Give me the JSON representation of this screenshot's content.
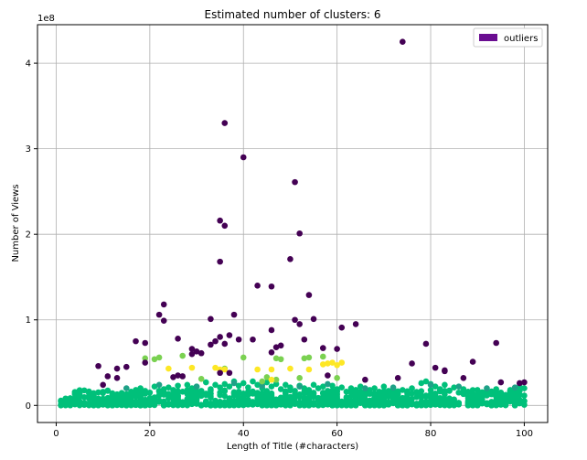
{
  "chart_data": {
    "type": "scatter",
    "title": "Estimated number of clusters: 6",
    "xlabel": "Length of Title (#characters)",
    "ylabel": "Number of Views",
    "y_multiplier_label": "1e8",
    "xlim": [
      -4,
      105
    ],
    "ylim": [
      -0.2,
      4.45
    ],
    "x_ticks": [
      0,
      20,
      40,
      60,
      80,
      100
    ],
    "y_ticks": [
      0,
      1,
      2,
      3,
      4
    ],
    "grid": true,
    "legend": {
      "placement": "top-right",
      "entries": [
        {
          "name": "outliers",
          "color": "#6a0d91"
        }
      ]
    },
    "series": [
      {
        "color": "#440154",
        "points": [
          [
            74,
            4.25
          ],
          [
            36,
            3.3
          ],
          [
            40,
            2.9
          ],
          [
            51,
            2.61
          ],
          [
            35,
            2.16
          ],
          [
            36,
            2.1
          ],
          [
            52,
            2.01
          ],
          [
            50,
            1.71
          ],
          [
            35,
            1.68
          ],
          [
            43,
            1.4
          ],
          [
            46,
            1.39
          ],
          [
            54,
            1.29
          ],
          [
            23,
            1.18
          ],
          [
            22,
            1.06
          ],
          [
            38,
            1.06
          ],
          [
            23,
            0.99
          ],
          [
            33,
            1.01
          ],
          [
            51,
            1.0
          ],
          [
            52,
            0.95
          ],
          [
            55,
            1.01
          ],
          [
            61,
            0.91
          ],
          [
            64,
            0.95
          ],
          [
            46,
            0.88
          ],
          [
            26,
            0.78
          ],
          [
            37,
            0.82
          ],
          [
            35,
            0.8
          ],
          [
            42,
            0.77
          ],
          [
            53,
            0.77
          ],
          [
            17,
            0.75
          ],
          [
            19,
            0.73
          ],
          [
            34,
            0.75
          ],
          [
            39,
            0.77
          ],
          [
            48,
            0.7
          ],
          [
            36,
            0.72
          ],
          [
            33,
            0.71
          ],
          [
            47,
            0.68
          ],
          [
            79,
            0.72
          ],
          [
            94,
            0.73
          ],
          [
            29,
            0.66
          ],
          [
            57,
            0.67
          ],
          [
            30,
            0.63
          ],
          [
            29,
            0.6
          ],
          [
            46,
            0.62
          ],
          [
            60,
            0.66
          ],
          [
            31,
            0.61
          ],
          [
            19,
            0.5
          ],
          [
            76,
            0.49
          ],
          [
            89,
            0.51
          ],
          [
            81,
            0.44
          ],
          [
            9,
            0.46
          ],
          [
            13,
            0.43
          ],
          [
            15,
            0.45
          ],
          [
            83,
            0.41
          ],
          [
            83,
            0.4
          ],
          [
            37,
            0.38
          ],
          [
            35,
            0.38
          ],
          [
            58,
            0.35
          ],
          [
            26,
            0.35
          ],
          [
            25,
            0.33
          ],
          [
            11,
            0.34
          ],
          [
            27,
            0.34
          ],
          [
            13,
            0.32
          ],
          [
            73,
            0.32
          ],
          [
            66,
            0.3
          ],
          [
            87,
            0.32
          ],
          [
            95,
            0.27
          ],
          [
            99,
            0.26
          ],
          [
            100,
            0.27
          ],
          [
            10,
            0.24
          ]
        ]
      },
      {
        "color": "#fde725",
        "points": [
          [
            35,
            0.42
          ],
          [
            36,
            0.42
          ],
          [
            34,
            0.44
          ],
          [
            24,
            0.43
          ],
          [
            29,
            0.44
          ],
          [
            43,
            0.42
          ],
          [
            46,
            0.42
          ],
          [
            50,
            0.43
          ],
          [
            54,
            0.42
          ],
          [
            58,
            0.49
          ],
          [
            59,
            0.5
          ],
          [
            60,
            0.47
          ],
          [
            61,
            0.5
          ],
          [
            57,
            0.48
          ],
          [
            46,
            0.3
          ]
        ]
      },
      {
        "color": "#7ad151",
        "points": [
          [
            19,
            0.55
          ],
          [
            21,
            0.54
          ],
          [
            22,
            0.56
          ],
          [
            27,
            0.58
          ],
          [
            40,
            0.56
          ],
          [
            47,
            0.55
          ],
          [
            48,
            0.54
          ],
          [
            53,
            0.55
          ],
          [
            54,
            0.56
          ],
          [
            57,
            0.57
          ],
          [
            45,
            0.33
          ],
          [
            47,
            0.3
          ],
          [
            52,
            0.32
          ],
          [
            60,
            0.32
          ],
          [
            44,
            0.28
          ],
          [
            31,
            0.31
          ],
          [
            36,
            0.43
          ]
        ]
      },
      {
        "color": "#1fa187",
        "points": [
          [
            15,
            0.2
          ],
          [
            22,
            0.24
          ],
          [
            30,
            0.22
          ],
          [
            38,
            0.26
          ],
          [
            44,
            0.23
          ],
          [
            52,
            0.22
          ],
          [
            58,
            0.25
          ],
          [
            66,
            0.2
          ],
          [
            72,
            0.21
          ],
          [
            80,
            0.24
          ],
          [
            86,
            0.22
          ],
          [
            92,
            0.2
          ],
          [
            98,
            0.21
          ]
        ]
      },
      {
        "color": "#00c07a",
        "points": [
          [
            1,
            0.01
          ],
          [
            2,
            0.02
          ],
          [
            3,
            0.02
          ],
          [
            4,
            0.03
          ],
          [
            5,
            0.02
          ],
          [
            6,
            0.03
          ],
          [
            7,
            0.02
          ],
          [
            8,
            0.05
          ],
          [
            9,
            0.08
          ],
          [
            10,
            0.04
          ],
          [
            11,
            0.17
          ],
          [
            12,
            0.06
          ],
          [
            13,
            0.09
          ],
          [
            14,
            0.14
          ],
          [
            15,
            0.12
          ],
          [
            16,
            0.16
          ],
          [
            17,
            0.18
          ],
          [
            18,
            0.2
          ],
          [
            19,
            0.17
          ],
          [
            20,
            0.15
          ],
          [
            21,
            0.22
          ],
          [
            22,
            0.12
          ],
          [
            23,
            0.19
          ],
          [
            24,
            0.21
          ],
          [
            25,
            0.18
          ],
          [
            26,
            0.23
          ],
          [
            27,
            0.16
          ],
          [
            28,
            0.24
          ],
          [
            29,
            0.2
          ],
          [
            30,
            0.22
          ],
          [
            31,
            0.17
          ],
          [
            32,
            0.27
          ],
          [
            33,
            0.19
          ],
          [
            34,
            0.24
          ],
          [
            35,
            0.21
          ],
          [
            36,
            0.25
          ],
          [
            37,
            0.22
          ],
          [
            38,
            0.28
          ],
          [
            39,
            0.23
          ],
          [
            40,
            0.26
          ],
          [
            41,
            0.21
          ],
          [
            42,
            0.28
          ],
          [
            43,
            0.24
          ],
          [
            44,
            0.2
          ],
          [
            45,
            0.27
          ],
          [
            46,
            0.22
          ],
          [
            47,
            0.25
          ],
          [
            48,
            0.19
          ],
          [
            49,
            0.24
          ],
          [
            50,
            0.21
          ],
          [
            51,
            0.17
          ],
          [
            52,
            0.23
          ],
          [
            53,
            0.2
          ],
          [
            54,
            0.18
          ],
          [
            55,
            0.24
          ],
          [
            56,
            0.2
          ],
          [
            57,
            0.22
          ],
          [
            58,
            0.17
          ],
          [
            59,
            0.23
          ],
          [
            60,
            0.19
          ],
          [
            61,
            0.21
          ],
          [
            62,
            0.16
          ],
          [
            63,
            0.2
          ],
          [
            64,
            0.18
          ],
          [
            65,
            0.22
          ],
          [
            66,
            0.15
          ],
          [
            67,
            0.18
          ],
          [
            68,
            0.2
          ],
          [
            69,
            0.16
          ],
          [
            70,
            0.22
          ],
          [
            71,
            0.17
          ],
          [
            72,
            0.19
          ],
          [
            73,
            0.14
          ],
          [
            74,
            0.18
          ],
          [
            75,
            0.16
          ],
          [
            76,
            0.2
          ],
          [
            77,
            0.15
          ],
          [
            78,
            0.26
          ],
          [
            79,
            0.28
          ],
          [
            80,
            0.25
          ],
          [
            81,
            0.22
          ],
          [
            82,
            0.19
          ],
          [
            83,
            0.24
          ],
          [
            84,
            0.17
          ],
          [
            85,
            0.21
          ],
          [
            86,
            0.15
          ],
          [
            87,
            0.19
          ],
          [
            88,
            0.16
          ],
          [
            89,
            0.12
          ],
          [
            90,
            0.18
          ],
          [
            91,
            0.14
          ],
          [
            92,
            0.17
          ],
          [
            93,
            0.13
          ],
          [
            94,
            0.19
          ],
          [
            95,
            0.15
          ],
          [
            96,
            0.12
          ],
          [
            97,
            0.18
          ],
          [
            98,
            0.16
          ],
          [
            99,
            0.22
          ],
          [
            100,
            0.2
          ],
          [
            20,
            0.08
          ],
          [
            25,
            0.1
          ],
          [
            30,
            0.07
          ],
          [
            35,
            0.12
          ],
          [
            40,
            0.09
          ],
          [
            45,
            0.11
          ],
          [
            50,
            0.08
          ],
          [
            55,
            0.1
          ],
          [
            60,
            0.07
          ],
          [
            65,
            0.09
          ],
          [
            70,
            0.06
          ],
          [
            75,
            0.08
          ],
          [
            80,
            0.05
          ],
          [
            85,
            0.07
          ],
          [
            90,
            0.06
          ],
          [
            95,
            0.08
          ],
          [
            100,
            0.05
          ],
          [
            18,
            0.03
          ],
          [
            28,
            0.04
          ],
          [
            38,
            0.05
          ],
          [
            48,
            0.03
          ],
          [
            58,
            0.04
          ],
          [
            68,
            0.03
          ],
          [
            78,
            0.04
          ],
          [
            88,
            0.03
          ],
          [
            98,
            0.02
          ],
          [
            14,
            0.01
          ],
          [
            24,
            0.02
          ],
          [
            34,
            0.01
          ],
          [
            44,
            0.02
          ],
          [
            54,
            0.01
          ],
          [
            64,
            0.02
          ],
          [
            74,
            0.01
          ],
          [
            84,
            0.02
          ],
          [
            94,
            0.01
          ]
        ]
      }
    ],
    "dense_band": {
      "color": "#00c07a",
      "x_range": [
        1,
        100
      ],
      "y_range": [
        0,
        0.18
      ],
      "count": 900
    }
  }
}
